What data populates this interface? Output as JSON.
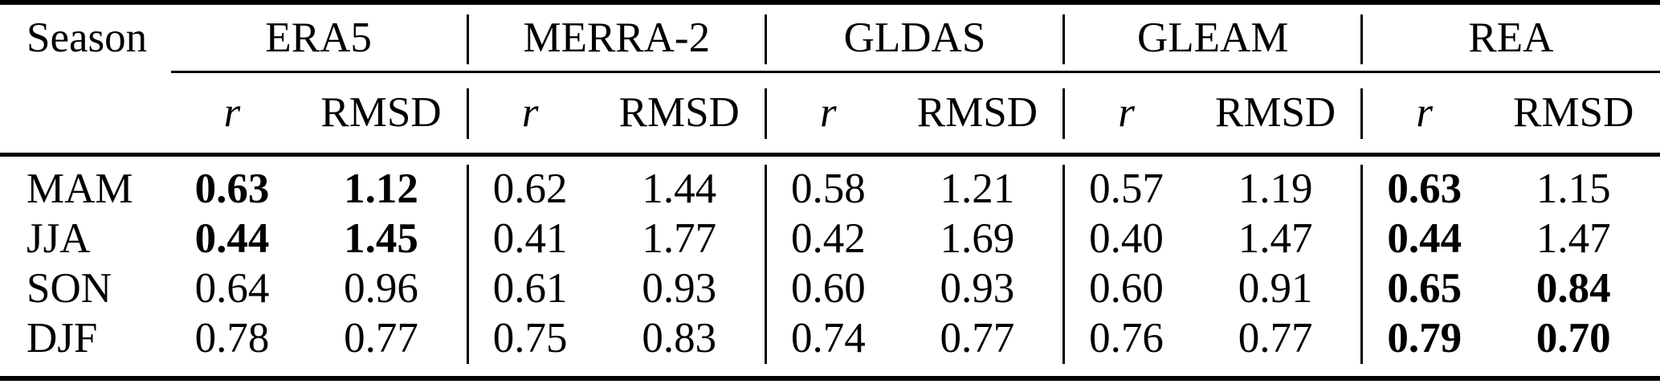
{
  "page": {
    "background_color": "#ffffff",
    "text_color": "#000000",
    "rule_color": "#000000"
  },
  "table": {
    "header": {
      "season_label": "Season",
      "groups": [
        "ERA5",
        "MERRA-2",
        "GLDAS",
        "GLEAM",
        "REA"
      ],
      "metric_labels": [
        "r",
        "RMSD"
      ]
    },
    "rows": [
      {
        "season": "MAM",
        "values": [
          [
            "0.63",
            "1.12"
          ],
          [
            "0.62",
            "1.44"
          ],
          [
            "0.58",
            "1.21"
          ],
          [
            "0.57",
            "1.19"
          ],
          [
            "0.63",
            "1.15"
          ]
        ],
        "bold": [
          [
            true,
            true
          ],
          [
            false,
            false
          ],
          [
            false,
            false
          ],
          [
            false,
            false
          ],
          [
            true,
            false
          ]
        ]
      },
      {
        "season": "JJA",
        "values": [
          [
            "0.44",
            "1.45"
          ],
          [
            "0.41",
            "1.77"
          ],
          [
            "0.42",
            "1.69"
          ],
          [
            "0.40",
            "1.47"
          ],
          [
            "0.44",
            "1.47"
          ]
        ],
        "bold": [
          [
            true,
            true
          ],
          [
            false,
            false
          ],
          [
            false,
            false
          ],
          [
            false,
            false
          ],
          [
            true,
            false
          ]
        ]
      },
      {
        "season": "SON",
        "values": [
          [
            "0.64",
            "0.96"
          ],
          [
            "0.61",
            "0.93"
          ],
          [
            "0.60",
            "0.93"
          ],
          [
            "0.60",
            "0.91"
          ],
          [
            "0.65",
            "0.84"
          ]
        ],
        "bold": [
          [
            false,
            false
          ],
          [
            false,
            false
          ],
          [
            false,
            false
          ],
          [
            false,
            false
          ],
          [
            true,
            true
          ]
        ]
      },
      {
        "season": "DJF",
        "values": [
          [
            "0.78",
            "0.77"
          ],
          [
            "0.75",
            "0.83"
          ],
          [
            "0.74",
            "0.77"
          ],
          [
            "0.76",
            "0.77"
          ],
          [
            "0.79",
            "0.70"
          ]
        ],
        "bold": [
          [
            false,
            false
          ],
          [
            false,
            false
          ],
          [
            false,
            false
          ],
          [
            false,
            false
          ],
          [
            true,
            true
          ]
        ]
      }
    ]
  },
  "chart_data": {
    "type": "table",
    "column_groups": [
      "ERA5",
      "MERRA-2",
      "GLDAS",
      "GLEAM",
      "REA"
    ],
    "sub_columns": [
      "r",
      "RMSD"
    ],
    "row_labels": [
      "MAM",
      "JJA",
      "SON",
      "DJF"
    ],
    "r_values": {
      "ERA5": [
        0.63,
        0.44,
        0.64,
        0.78
      ],
      "MERRA-2": [
        0.62,
        0.41,
        0.61,
        0.75
      ],
      "GLDAS": [
        0.58,
        0.42,
        0.6,
        0.74
      ],
      "GLEAM": [
        0.57,
        0.4,
        0.6,
        0.76
      ],
      "REA": [
        0.63,
        0.44,
        0.65,
        0.79
      ]
    },
    "rmsd_values": {
      "ERA5": [
        1.12,
        1.45,
        0.96,
        0.77
      ],
      "MERRA-2": [
        1.44,
        1.77,
        0.93,
        0.83
      ],
      "GLDAS": [
        1.21,
        1.69,
        0.93,
        0.77
      ],
      "GLEAM": [
        1.19,
        1.47,
        0.91,
        0.77
      ],
      "REA": [
        1.15,
        1.47,
        0.84,
        0.7
      ]
    }
  }
}
